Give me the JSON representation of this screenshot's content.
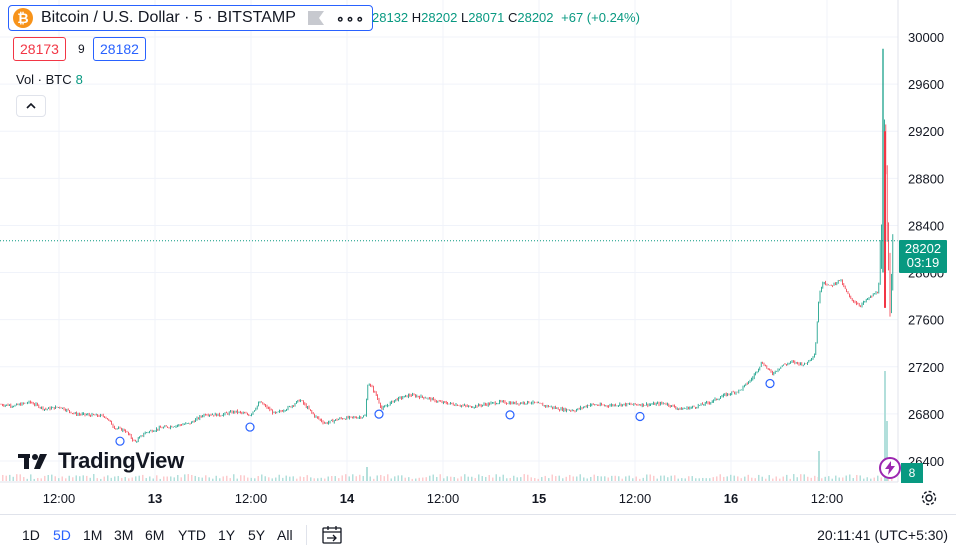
{
  "header": {
    "symbol_title": "Bitcoin / U.S. Dollar · 5 · BITSTAMP",
    "logo_glyph": "₿",
    "ohlc": {
      "open_label": "",
      "open": "28132",
      "high_label": "H",
      "high": "28202",
      "low_label": "L",
      "low": "28071",
      "close_label": "C",
      "close": "28202",
      "change": "+67 (+0.24%)"
    },
    "sell_price": "28173",
    "spread": "9",
    "buy_price": "28182",
    "volume_label": "Vol · BTC",
    "volume_value": "8"
  },
  "brand": {
    "name": "TradingView"
  },
  "price_badge": {
    "price": "28202",
    "countdown": "03:19"
  },
  "volume_badge": "8",
  "toolbar": {
    "ranges": [
      "1D",
      "5D",
      "1M",
      "3M",
      "6M",
      "YTD",
      "1Y",
      "5Y",
      "All"
    ],
    "active_range": "5D",
    "clock": "20:11:41 (UTC+5:30)"
  },
  "colors": {
    "up": "#089981",
    "down": "#f23645",
    "accent": "#2962ff"
  },
  "chart_data": {
    "type": "candlestick",
    "ylim": [
      26200,
      30100
    ],
    "y_ticks": [
      26400,
      26800,
      27200,
      27600,
      28000,
      28400,
      28800,
      29200,
      29600,
      30000
    ],
    "x_ticks": [
      "12:00",
      "13",
      "12:00",
      "14",
      "12:00",
      "15",
      "12:00",
      "16",
      "12:00"
    ],
    "last_price": 28202,
    "price_path": [
      [
        0,
        26880
      ],
      [
        15,
        26870
      ],
      [
        30,
        26900
      ],
      [
        45,
        26840
      ],
      [
        60,
        26860
      ],
      [
        75,
        26800
      ],
      [
        90,
        26790
      ],
      [
        105,
        26780
      ],
      [
        115,
        26680
      ],
      [
        125,
        26660
      ],
      [
        135,
        26560
      ],
      [
        145,
        26640
      ],
      [
        160,
        26680
      ],
      [
        175,
        26700
      ],
      [
        190,
        26720
      ],
      [
        205,
        26800
      ],
      [
        220,
        26790
      ],
      [
        235,
        26820
      ],
      [
        250,
        26790
      ],
      [
        260,
        26900
      ],
      [
        275,
        26800
      ],
      [
        290,
        26860
      ],
      [
        300,
        26920
      ],
      [
        315,
        26780
      ],
      [
        325,
        26720
      ],
      [
        340,
        26760
      ],
      [
        355,
        26770
      ],
      [
        365,
        26780
      ],
      [
        368,
        27070
      ],
      [
        375,
        26980
      ],
      [
        382,
        26840
      ],
      [
        395,
        26920
      ],
      [
        410,
        26960
      ],
      [
        425,
        26940
      ],
      [
        440,
        26900
      ],
      [
        455,
        26880
      ],
      [
        470,
        26860
      ],
      [
        485,
        26880
      ],
      [
        500,
        26900
      ],
      [
        515,
        26890
      ],
      [
        530,
        26900
      ],
      [
        545,
        26870
      ],
      [
        560,
        26840
      ],
      [
        575,
        26830
      ],
      [
        590,
        26880
      ],
      [
        605,
        26870
      ],
      [
        620,
        26880
      ],
      [
        635,
        26880
      ],
      [
        650,
        26880
      ],
      [
        665,
        26890
      ],
      [
        680,
        26840
      ],
      [
        695,
        26860
      ],
      [
        710,
        26900
      ],
      [
        725,
        26960
      ],
      [
        740,
        27000
      ],
      [
        752,
        27100
      ],
      [
        762,
        27240
      ],
      [
        772,
        27140
      ],
      [
        782,
        27210
      ],
      [
        792,
        27240
      ],
      [
        805,
        27220
      ],
      [
        815,
        27310
      ],
      [
        819,
        27800
      ],
      [
        823,
        27930
      ],
      [
        830,
        27880
      ],
      [
        840,
        27940
      ],
      [
        850,
        27780
      ],
      [
        860,
        27720
      ],
      [
        870,
        27790
      ],
      [
        878,
        27840
      ],
      [
        882,
        28200
      ],
      [
        884,
        29200
      ],
      [
        886,
        28800
      ],
      [
        888,
        28200
      ],
      [
        890,
        27900
      ],
      [
        892,
        28150
      ],
      [
        894,
        28202
      ]
    ],
    "volume_spikes": [
      [
        366,
        14
      ],
      [
        818,
        30
      ],
      [
        884,
        110
      ],
      [
        886,
        60
      ]
    ],
    "markers_x": [
      120,
      250,
      379,
      510,
      640,
      770
    ]
  }
}
